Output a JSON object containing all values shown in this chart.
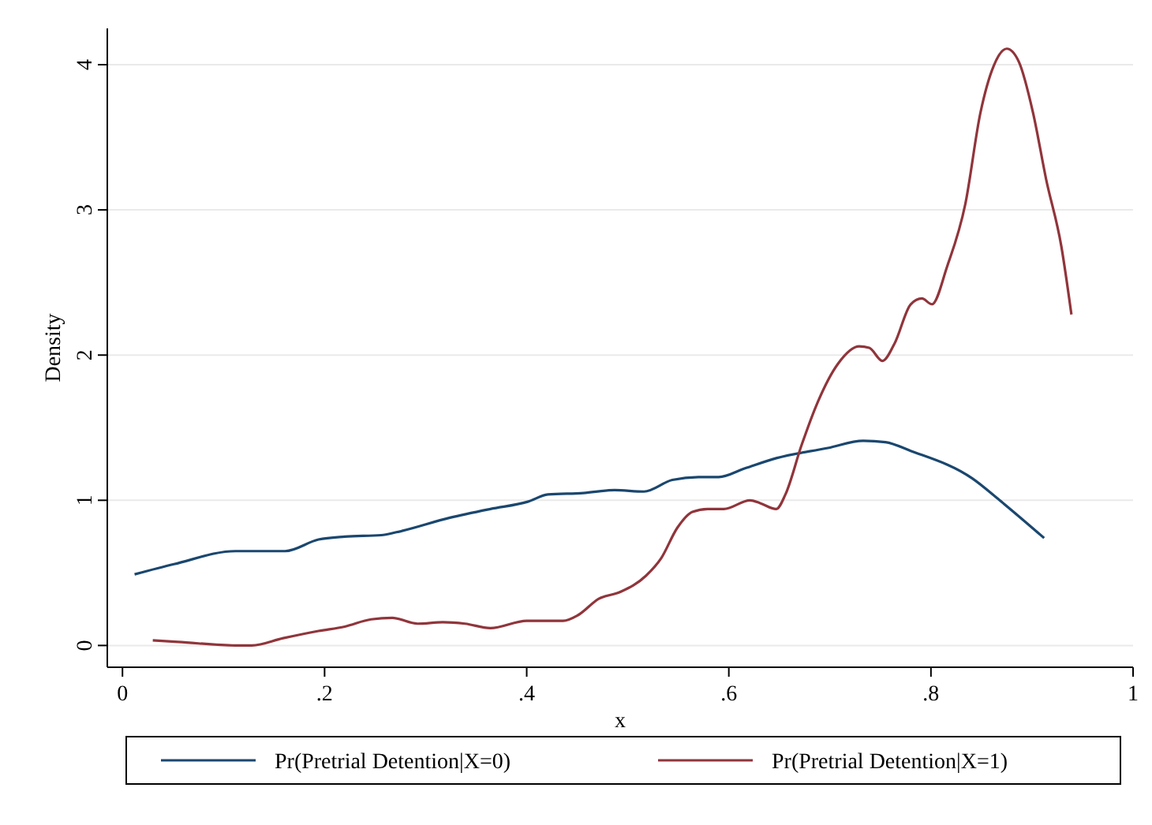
{
  "chart_data": {
    "type": "line",
    "xlabel": "x",
    "ylabel": "Density",
    "xlim": [
      -0.015,
      1.0
    ],
    "ylim": [
      -0.15,
      4.25
    ],
    "xticks": [
      0,
      {
        "value": 0.2,
        "label": ".2"
      },
      {
        "value": 0.4,
        "label": ".4"
      },
      {
        "value": 0.6,
        "label": ".6"
      },
      {
        "value": 0.8,
        "label": ".8"
      },
      1
    ],
    "yticks": [
      0,
      1,
      2,
      3,
      4
    ],
    "grid": "y",
    "legend": "bottom",
    "marker": "none",
    "line_style": "solid",
    "series": [
      {
        "name": "Pr(Pretrial Detention|X=0)",
        "color": "#1a476f",
        "x": [
          0.012,
          0.051,
          0.112,
          0.161,
          0.194,
          0.22,
          0.256,
          0.271,
          0.324,
          0.364,
          0.401,
          0.421,
          0.456,
          0.487,
          0.516,
          0.544,
          0.57,
          0.59,
          0.616,
          0.647,
          0.698,
          0.733,
          0.755,
          0.78,
          0.841,
          0.868,
          0.912
        ],
        "values": [
          0.49,
          0.56,
          0.65,
          0.65,
          0.73,
          0.75,
          0.76,
          0.78,
          0.88,
          0.94,
          0.99,
          1.04,
          1.05,
          1.07,
          1.06,
          1.14,
          1.16,
          1.16,
          1.22,
          1.29,
          1.36,
          1.41,
          1.4,
          1.34,
          1.15,
          1.0,
          0.74
        ]
      },
      {
        "name": "Pr(Pretrial Detention|X=1)",
        "color": "#90353b",
        "x": [
          0.03,
          0.055,
          0.112,
          0.128,
          0.159,
          0.194,
          0.22,
          0.246,
          0.267,
          0.292,
          0.317,
          0.339,
          0.364,
          0.4,
          0.436,
          0.451,
          0.471,
          0.493,
          0.518,
          0.533,
          0.549,
          0.564,
          0.579,
          0.595,
          0.621,
          0.631,
          0.647,
          0.656,
          0.672,
          0.687,
          0.708,
          0.729,
          0.739,
          0.752,
          0.764,
          0.78,
          0.791,
          0.801,
          0.816,
          0.834,
          0.849,
          0.862,
          0.875,
          0.887,
          0.901,
          0.914,
          0.929,
          0.939
        ],
        "values": [
          0.035,
          0.025,
          0.0,
          0.0,
          0.05,
          0.1,
          0.13,
          0.18,
          0.19,
          0.15,
          0.16,
          0.15,
          0.12,
          0.17,
          0.17,
          0.21,
          0.32,
          0.37,
          0.48,
          0.6,
          0.81,
          0.92,
          0.94,
          0.94,
          1.0,
          0.98,
          0.94,
          1.04,
          1.38,
          1.66,
          1.94,
          2.06,
          2.05,
          1.96,
          2.08,
          2.35,
          2.39,
          2.35,
          2.61,
          3.04,
          3.67,
          3.99,
          4.11,
          4.02,
          3.67,
          3.21,
          2.75,
          2.28
        ]
      }
    ]
  }
}
